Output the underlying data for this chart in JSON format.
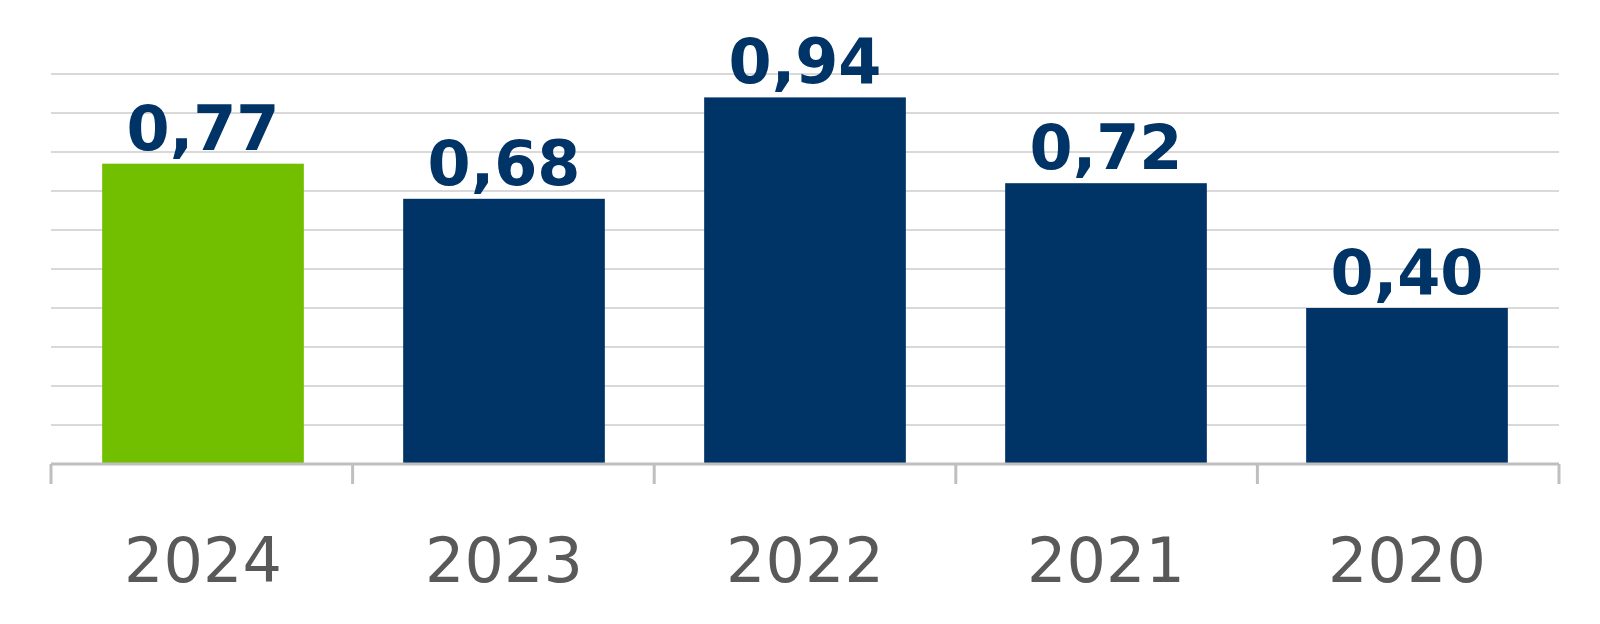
{
  "chart_data": {
    "type": "bar",
    "categories": [
      "2024",
      "2023",
      "2022",
      "2021",
      "2020"
    ],
    "values": [
      0.77,
      0.68,
      0.94,
      0.72,
      0.4
    ],
    "colors": [
      "#72bf00",
      "#003366",
      "#003366",
      "#003366",
      "#003366"
    ],
    "value_labels": [
      "0,77",
      "0,68",
      "0,94",
      "0,72",
      "0,40"
    ],
    "ylim": [
      0,
      1
    ],
    "yticks": [
      {
        "value": 0,
        "label": null
      },
      {
        "value": 0.1,
        "label": null
      },
      {
        "value": 0.2,
        "label": null
      },
      {
        "value": 0.3,
        "label": null
      },
      {
        "value": 0.4,
        "label": null
      },
      {
        "value": 0.5,
        "label": null
      },
      {
        "value": 0.6,
        "label": null
      },
      {
        "value": 0.7,
        "label": null
      },
      {
        "value": 0.8,
        "label": null
      },
      {
        "value": 0.9,
        "label": null
      },
      {
        "value": 1,
        "label": null
      }
    ],
    "grid": "y",
    "tick_labels": "x"
  }
}
